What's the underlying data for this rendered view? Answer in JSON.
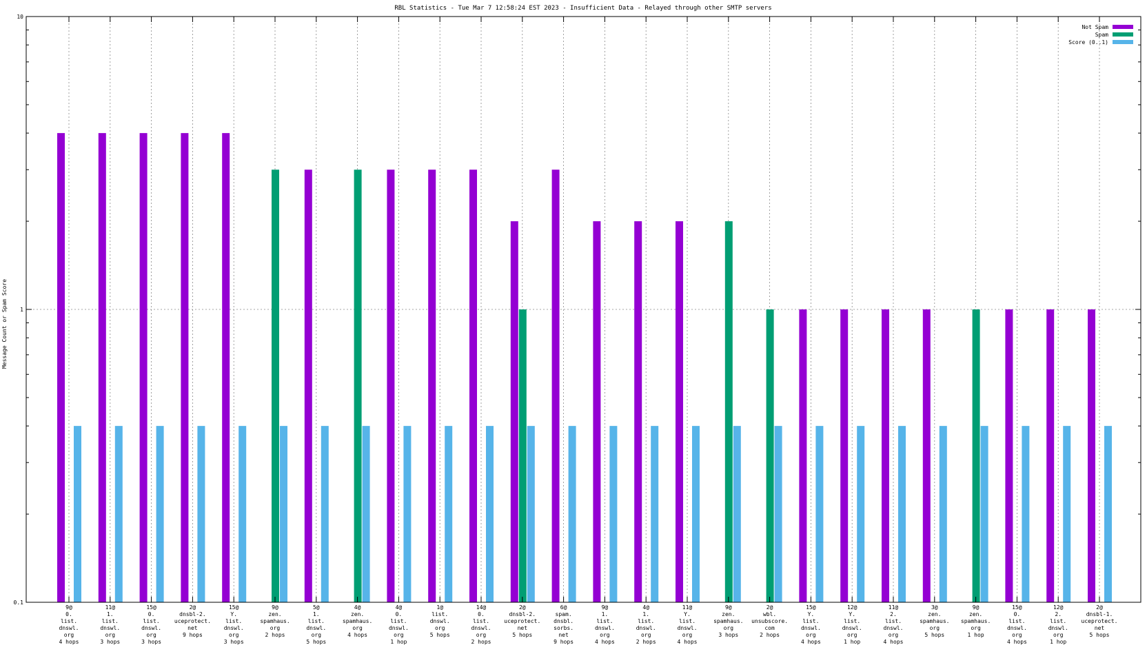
{
  "chart_data": {
    "type": "bar",
    "title": "RBL Statistics - Tue Mar  7 12:58:24 EST 2023 - Insufficient Data - Relayed through other SMTP servers",
    "ylabel": "Message Count or Spam Score",
    "xlabel": "",
    "yscale": "log",
    "ylim": [
      0.1,
      10
    ],
    "yticks": [
      "0.1",
      "1",
      "10"
    ],
    "grid": "on",
    "legend_position": "top-right",
    "categories": [
      [
        "9@",
        "0.",
        "list.",
        "dnswl.",
        "org",
        "4 hops"
      ],
      [
        "11@",
        "1.",
        "list.",
        "dnswl.",
        "org",
        "3 hops"
      ],
      [
        "15@",
        "0.",
        "list.",
        "dnswl.",
        "org",
        "3 hops"
      ],
      [
        "2@",
        "dnsbl-2.",
        "uceprotect.",
        "net",
        "9 hops"
      ],
      [
        "15@",
        "Y.",
        "list.",
        "dnswl.",
        "org",
        "3 hops"
      ],
      [
        "9@",
        "zen.",
        "spamhaus.",
        "org",
        "2 hops"
      ],
      [
        "5@",
        "1.",
        "list.",
        "dnswl.",
        "org",
        "5 hops"
      ],
      [
        "4@",
        "zen.",
        "spamhaus.",
        "org",
        "4 hops"
      ],
      [
        "4@",
        "0.",
        "list.",
        "dnswl.",
        "org",
        "1 hop"
      ],
      [
        "1@",
        "list.",
        "dnswl.",
        "org",
        "5 hops"
      ],
      [
        "14@",
        "0.",
        "list.",
        "dnswl.",
        "org",
        "2 hops"
      ],
      [
        "2@",
        "dnsbl-2.",
        "uceprotect.",
        "net",
        "5 hops"
      ],
      [
        "6@",
        "spam.",
        "dnsbl.",
        "sorbs.",
        "net",
        "9 hops"
      ],
      [
        "9@",
        "1.",
        "list.",
        "dnswl.",
        "org",
        "4 hops"
      ],
      [
        "4@",
        "1.",
        "list.",
        "dnswl.",
        "org",
        "2 hops"
      ],
      [
        "11@",
        "Y.",
        "list.",
        "dnswl.",
        "org",
        "4 hops"
      ],
      [
        "9@",
        "zen.",
        "spamhaus.",
        "org",
        "3 hops"
      ],
      [
        "2@",
        "wbl.",
        "unsubscore.",
        "com",
        "2 hops"
      ],
      [
        "15@",
        "Y.",
        "list.",
        "dnswl.",
        "org",
        "4 hops"
      ],
      [
        "12@",
        "Y.",
        "list.",
        "dnswl.",
        "org",
        "1 hop"
      ],
      [
        "11@",
        "2.",
        "list.",
        "dnswl.",
        "org",
        "4 hops"
      ],
      [
        "3@",
        "zen.",
        "spamhaus.",
        "org",
        "5 hops"
      ],
      [
        "9@",
        "zen.",
        "spamhaus.",
        "org",
        "1 hop"
      ],
      [
        "15@",
        "0.",
        "list.",
        "dnswl.",
        "org",
        "4 hops"
      ],
      [
        "12@",
        "2.",
        "list.",
        "dnswl.",
        "org",
        "1 hop"
      ],
      [
        "2@",
        "dnsbl-1.",
        "uceprotect.",
        "net",
        "5 hops"
      ]
    ],
    "series": [
      {
        "name": "Not Spam",
        "color": "#9400d3",
        "values": [
          4,
          4,
          4,
          4,
          4,
          0,
          3,
          0,
          3,
          3,
          3,
          2,
          3,
          2,
          2,
          2,
          0,
          0,
          1,
          1,
          1,
          1,
          0,
          1,
          1,
          1
        ]
      },
      {
        "name": "Spam",
        "color": "#009e73",
        "values": [
          0,
          0,
          0,
          0,
          0,
          3,
          0,
          3,
          0,
          0,
          0,
          1,
          0,
          0,
          0,
          0,
          2,
          1,
          0,
          0,
          0,
          0,
          1,
          0,
          0,
          0
        ]
      },
      {
        "name": "Score (0..1)",
        "color": "#56b4e9",
        "values": [
          0.4,
          0.4,
          0.4,
          0.4,
          0.4,
          0.4,
          0.4,
          0.4,
          0.4,
          0.4,
          0.4,
          0.4,
          0.4,
          0.4,
          0.4,
          0.4,
          0.4,
          0.4,
          0.4,
          0.4,
          0.4,
          0.4,
          0.4,
          0.4,
          0.4,
          0.4
        ]
      }
    ]
  }
}
